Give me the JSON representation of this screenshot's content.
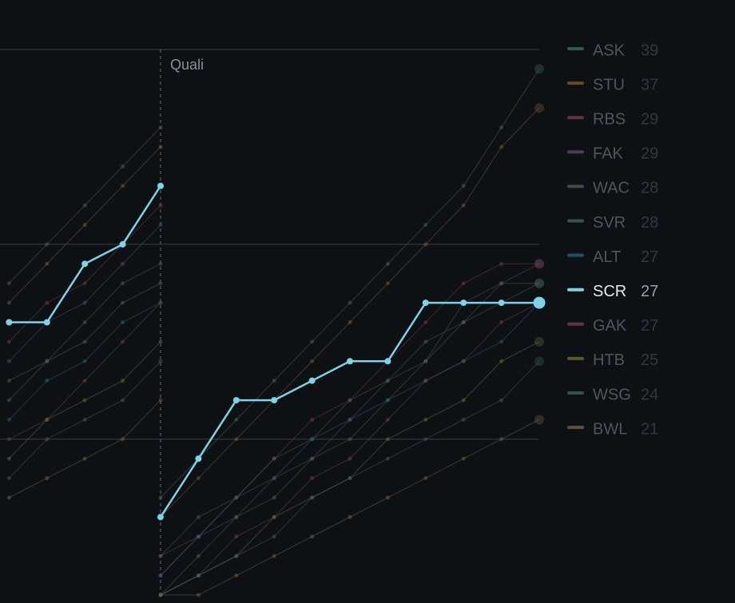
{
  "chart_data": {
    "type": "line",
    "x": [
      0,
      1,
      2,
      3,
      4,
      null,
      4,
      5,
      6,
      7,
      8,
      9,
      10,
      11,
      12,
      13,
      14
    ],
    "xlim": [
      -0.24,
      14
    ],
    "ylim": [
      12,
      40
    ],
    "yticks": [
      20,
      30,
      40
    ],
    "grid": true,
    "annotation": {
      "x": 4,
      "label": "Quali"
    },
    "highlight": 7,
    "series": [
      {
        "name": "ASK",
        "color": "#3f6a50",
        "values": [
          28,
          30,
          32,
          34,
          36,
          null,
          17,
          19,
          21,
          23,
          25,
          27,
          29,
          31,
          33,
          36,
          39
        ]
      },
      {
        "name": "STU",
        "color": "#7a5a32",
        "values": [
          27,
          29,
          31,
          33,
          35,
          null,
          16,
          18,
          20,
          22,
          24,
          26,
          28,
          30,
          32,
          35,
          37
        ]
      },
      {
        "name": "RBS",
        "color": "#7a3a48",
        "values": [
          25,
          27,
          28,
          30,
          32,
          null,
          14,
          15,
          17,
          19,
          21,
          22,
          24,
          26,
          28,
          29,
          29
        ]
      },
      {
        "name": "FAK",
        "color": "#5e4670",
        "values": [
          24,
          26,
          27,
          29,
          31,
          null,
          13,
          15,
          16,
          18,
          19,
          21,
          23,
          24,
          27,
          28,
          29
        ]
      },
      {
        "name": "WAC",
        "color": "#4e5e4c",
        "values": [
          23,
          24,
          26,
          28,
          29,
          null,
          14,
          16,
          17,
          19,
          20,
          22,
          23,
          25,
          26,
          28,
          28
        ]
      },
      {
        "name": "SVR",
        "color": "#466650",
        "values": [
          22,
          24,
          25,
          27,
          28,
          null,
          12,
          14,
          16,
          17,
          19,
          20,
          22,
          24,
          26,
          27,
          28
        ]
      },
      {
        "name": "ALT",
        "color": "#2c5d78",
        "values": [
          21,
          23,
          24,
          26,
          27,
          null,
          13,
          15,
          17,
          18,
          20,
          21,
          22,
          23,
          24,
          25,
          27
        ]
      },
      {
        "name": "SCR",
        "color": "#7fd3e6",
        "values": [
          26,
          26,
          29,
          30,
          33,
          null,
          16,
          19,
          22,
          22,
          23,
          24,
          24,
          27,
          27,
          27,
          27
        ]
      },
      {
        "name": "GAK",
        "color": "#74404c",
        "values": [
          20,
          21,
          23,
          25,
          27,
          null,
          12,
          13,
          15,
          16,
          18,
          19,
          21,
          23,
          24,
          26,
          27
        ]
      },
      {
        "name": "HTB",
        "color": "#6e6838",
        "values": [
          19,
          21,
          22,
          23,
          25,
          null,
          12,
          13,
          14,
          16,
          17,
          18,
          20,
          21,
          22,
          24,
          25
        ]
      },
      {
        "name": "WSG",
        "color": "#3c605a",
        "values": [
          18,
          20,
          21,
          22,
          24,
          null,
          12,
          13,
          14,
          15,
          17,
          18,
          19,
          20,
          21,
          22,
          24
        ]
      },
      {
        "name": "BWL",
        "color": "#76603a",
        "values": [
          17,
          18,
          19,
          20,
          22,
          null,
          12,
          12,
          13,
          14,
          15,
          16,
          17,
          18,
          19,
          20,
          21
        ]
      }
    ]
  }
}
